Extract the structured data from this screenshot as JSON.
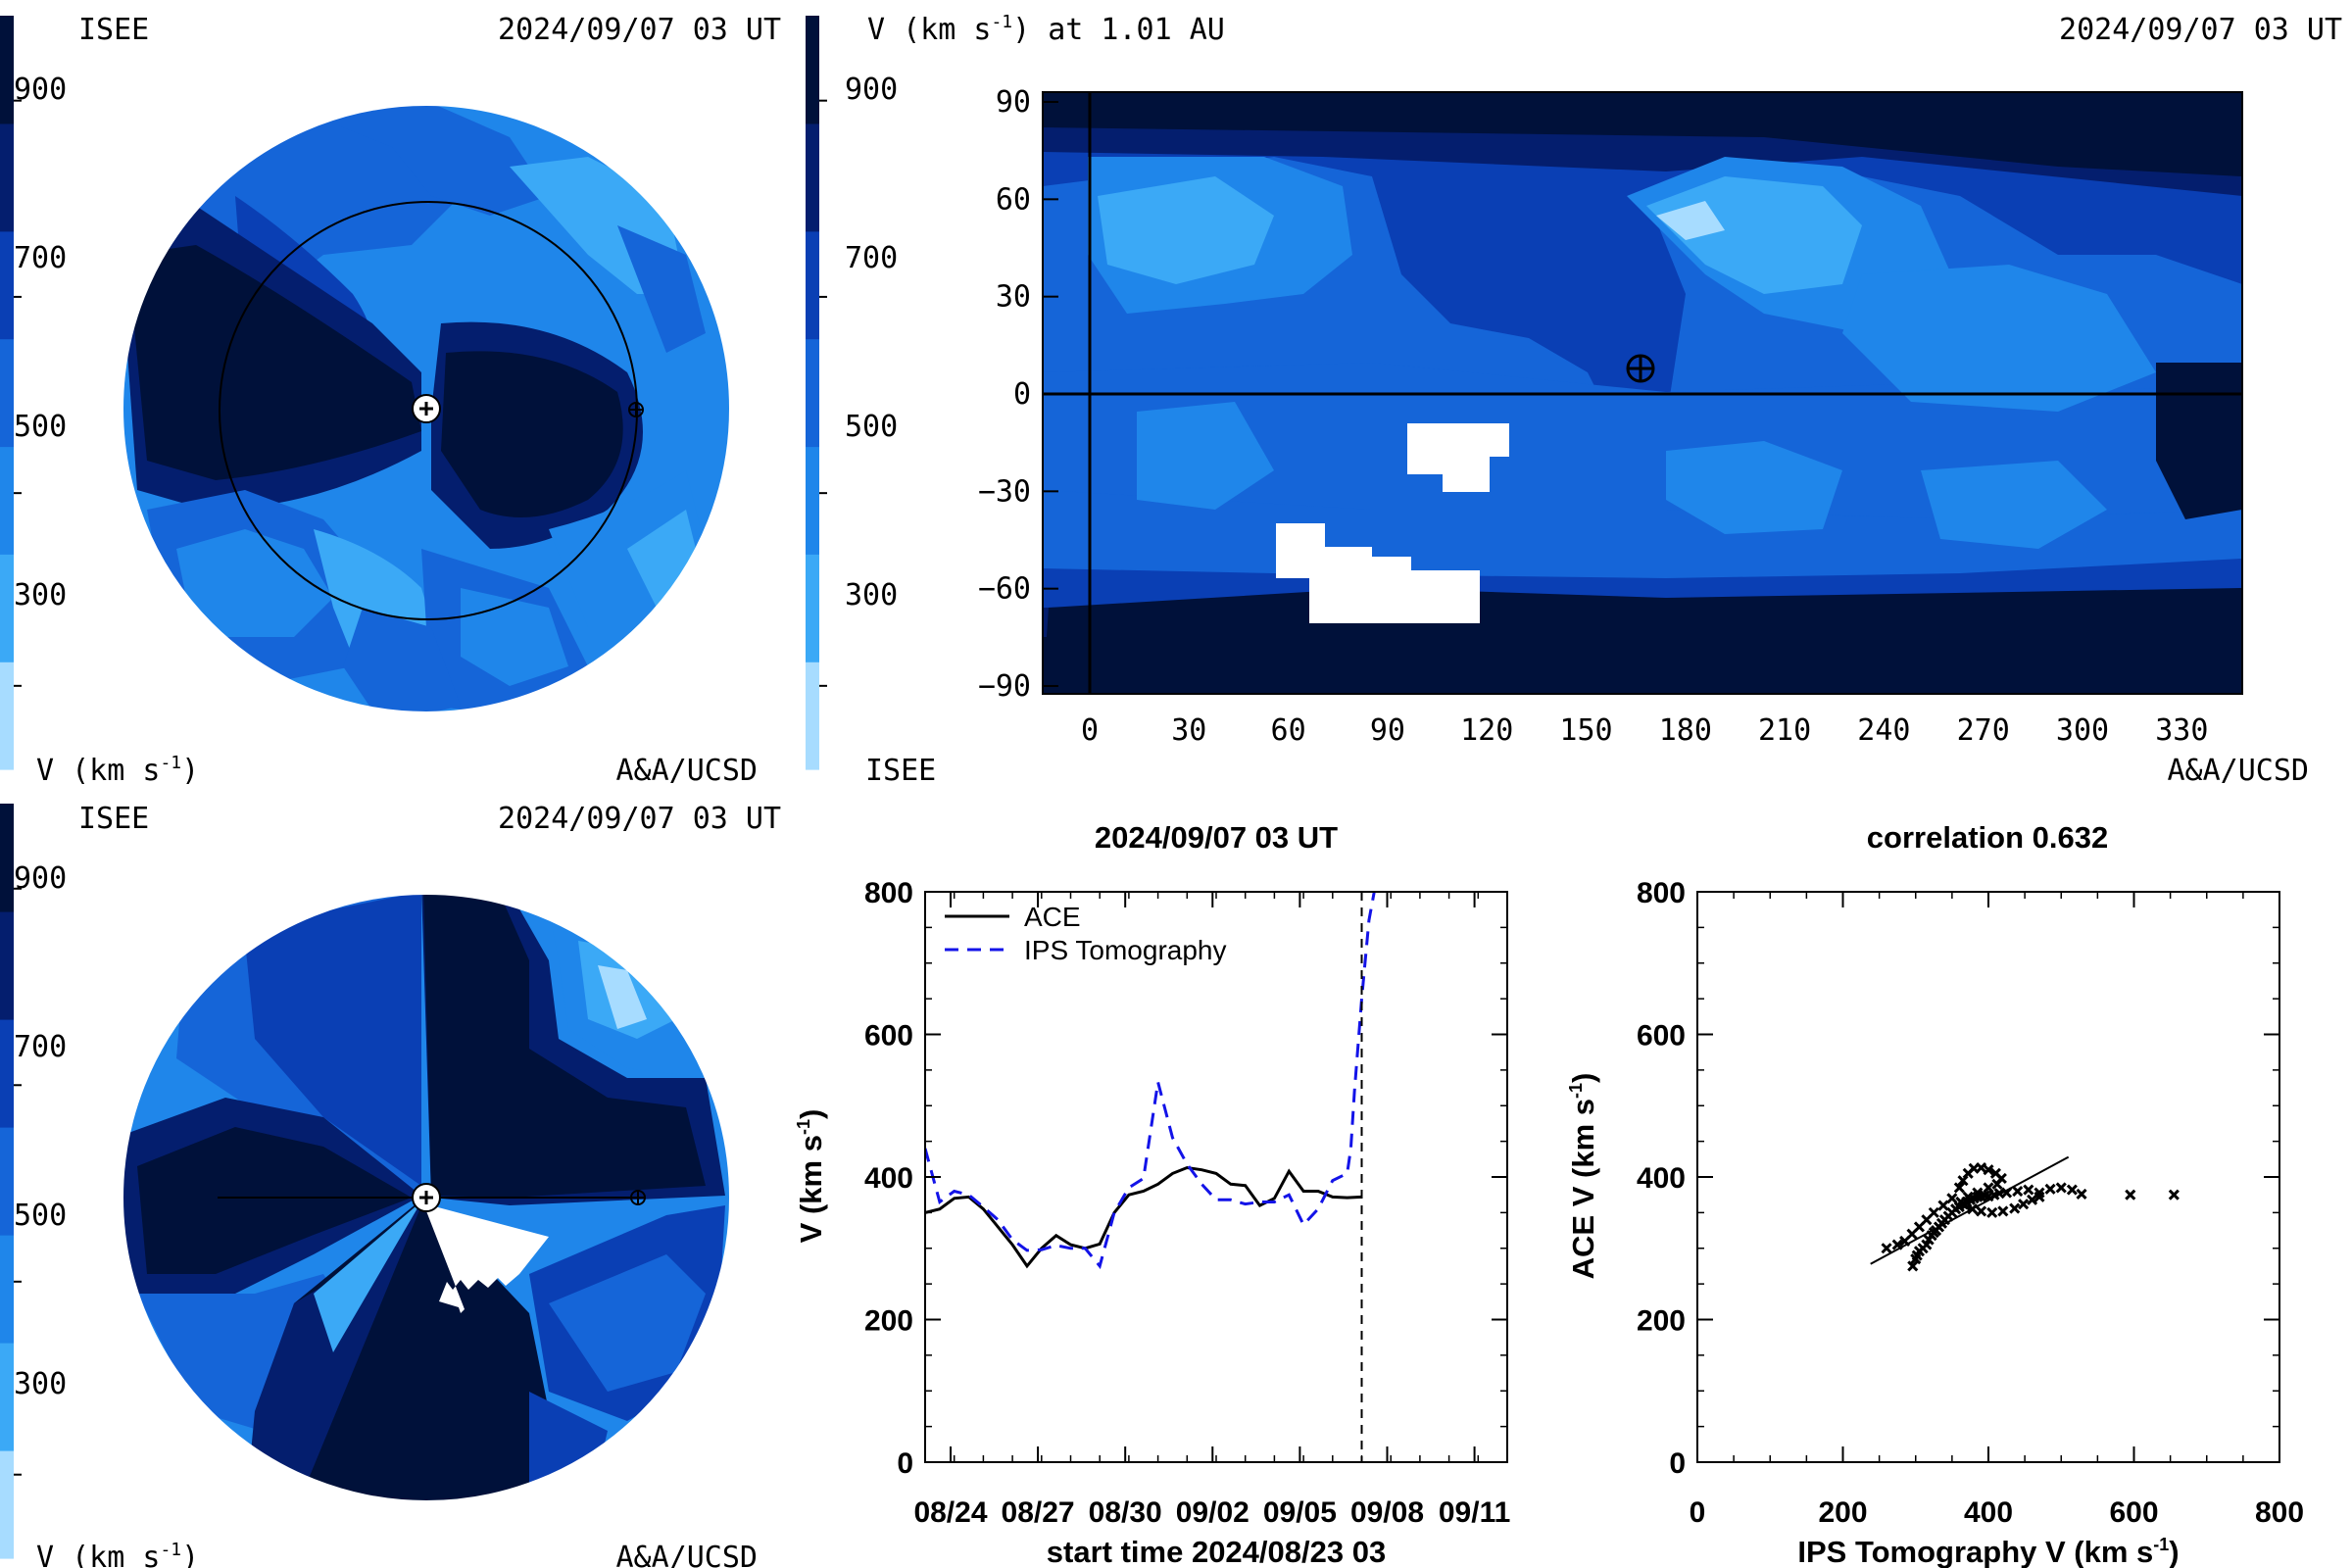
{
  "colors": {
    "velocity_levels": [
      "#a7dcff",
      "#3ba9f6",
      "#1f86ea",
      "#1565d8",
      "#0a3fb4",
      "#041e6e",
      "#00113a"
    ],
    "white": "#ffffff",
    "black": "#000000",
    "tomography_dash": "#1313e8"
  },
  "panels": {
    "top_left": {
      "org": "ISEE",
      "timestamp": "2024/09/07 03 UT",
      "colorbar_ticks": [
        "900",
        "700",
        "500",
        "300"
      ],
      "unit_label": "V (km s",
      "unit_sup": "-1",
      "unit_close": ")",
      "credit": "A&A/UCSD",
      "markers": [
        "sun-marker",
        "earth-marker"
      ],
      "orbit_ring": true
    },
    "top_right": {
      "title_prefix": "V (km s",
      "title_sup": "-1",
      "title_suffix": ") at 1.01 AU",
      "timestamp": "2024/09/07 03 UT",
      "colorbar_ticks": [
        "900",
        "700",
        "500",
        "300"
      ],
      "org": "ISEE",
      "credit": "A&A/UCSD",
      "lat_ticks": [
        "90",
        "60",
        "30",
        "0",
        "−30",
        "−60",
        "−90"
      ],
      "lon_ticks": [
        "0",
        "30",
        "60",
        "90",
        "120",
        "150",
        "180",
        "210",
        "240",
        "270",
        "300",
        "330"
      ]
    },
    "bottom_left": {
      "org": "ISEE",
      "timestamp": "2024/09/07 03 UT",
      "colorbar_ticks": [
        "900",
        "700",
        "500",
        "300"
      ],
      "unit_label": "V (km s",
      "unit_sup": "-1",
      "unit_close": ")",
      "credit": "A&A/UCSD"
    }
  },
  "chart_data": [
    {
      "type": "line",
      "title": "2024/09/07 03 UT",
      "xlabel": "start time 2024/08/23 03",
      "ylabel_main": "V (km s",
      "ylabel_sup": "-1",
      "ylabel_close": ")",
      "ylim": [
        0,
        800
      ],
      "xlim_days": [
        0,
        20
      ],
      "x_tick_labels": [
        "08/24",
        "08/27",
        "08/30",
        "09/02",
        "09/05",
        "09/08",
        "09/11"
      ],
      "y_tick_labels": [
        "0",
        "200",
        "400",
        "600",
        "800"
      ],
      "series": [
        {
          "name": "ACE",
          "style": "solid",
          "x": [
            "08/23 03",
            "08/23 15",
            "08/24 03",
            "08/24 15",
            "08/25 03",
            "08/25 15",
            "08/26 03",
            "08/26 15",
            "08/27 03",
            "08/27 15",
            "08/28 03",
            "08/28 15",
            "08/29 03",
            "08/29 15",
            "08/30 03",
            "08/30 15",
            "08/31 03",
            "08/31 15",
            "09/01 03",
            "09/01 15",
            "09/02 03",
            "09/02 15",
            "09/03 03",
            "09/03 15",
            "09/04 03",
            "09/04 15",
            "09/05 03",
            "09/05 15",
            "09/06 03",
            "09/06 15",
            "09/07 03"
          ],
          "values": [
            350,
            355,
            370,
            372,
            355,
            330,
            305,
            275,
            300,
            318,
            305,
            300,
            306,
            350,
            375,
            380,
            390,
            405,
            413,
            410,
            405,
            390,
            388,
            360,
            370,
            408,
            380,
            380,
            372,
            371,
            372
          ]
        },
        {
          "name": "IPS Tomography",
          "style": "dashed",
          "x": [
            "08/23 03",
            "08/23 15",
            "08/24 03",
            "08/24 15",
            "08/25 03",
            "08/25 15",
            "08/26 03",
            "08/26 15",
            "08/27 03",
            "08/27 15",
            "08/28 03",
            "08/28 15",
            "08/29 03",
            "08/29 15",
            "08/30 03",
            "08/30 15",
            "08/31 03",
            "08/31 15",
            "09/01 03",
            "09/01 15",
            "09/02 03",
            "09/02 15",
            "09/03 03",
            "09/03 15",
            "09/04 03",
            "09/04 15",
            "09/05 03",
            "09/05 15",
            "09/06 03",
            "09/06 15",
            "09/06 18",
            "09/06 21",
            "09/07 03",
            "09/07 09",
            "09/07 15"
          ],
          "values": [
            440,
            365,
            380,
            375,
            358,
            340,
            312,
            297,
            298,
            304,
            300,
            300,
            275,
            350,
            385,
            398,
            533,
            455,
            418,
            390,
            368,
            368,
            362,
            365,
            365,
            375,
            333,
            355,
            395,
            405,
            440,
            520,
            650,
            760,
            815
          ]
        }
      ],
      "vertical_marker": "09/07 03"
    },
    {
      "type": "scatter",
      "title": "correlation 0.632",
      "xlabel_main": "IPS Tomography V (km s",
      "xlabel_sup": "-1",
      "xlabel_close": ")",
      "ylabel_main": "ACE V (km s",
      "ylabel_sup": "-1",
      "ylabel_close": ")",
      "xlim": [
        0,
        800
      ],
      "ylim": [
        0,
        800
      ],
      "x_tick_labels": [
        "0",
        "200",
        "400",
        "600",
        "800"
      ],
      "y_tick_labels": [
        "0",
        "200",
        "400",
        "600",
        "800"
      ],
      "points": [
        [
          296,
          275
        ],
        [
          300,
          285
        ],
        [
          302,
          290
        ],
        [
          305,
          296
        ],
        [
          310,
          300
        ],
        [
          315,
          305
        ],
        [
          318,
          312
        ],
        [
          322,
          318
        ],
        [
          325,
          322
        ],
        [
          328,
          325
        ],
        [
          332,
          330
        ],
        [
          336,
          335
        ],
        [
          340,
          340
        ],
        [
          345,
          345
        ],
        [
          350,
          350
        ],
        [
          355,
          355
        ],
        [
          360,
          358
        ],
        [
          365,
          362
        ],
        [
          370,
          365
        ],
        [
          375,
          368
        ],
        [
          380,
          370
        ],
        [
          385,
          372
        ],
        [
          390,
          372
        ],
        [
          395,
          374
        ],
        [
          400,
          373
        ],
        [
          408,
          375
        ],
        [
          415,
          377
        ],
        [
          425,
          378
        ],
        [
          440,
          380
        ],
        [
          455,
          382
        ],
        [
          470,
          378
        ],
        [
          485,
          383
        ],
        [
          500,
          385
        ],
        [
          515,
          382
        ],
        [
          528,
          376
        ],
        [
          595,
          375
        ],
        [
          655,
          375
        ],
        [
          260,
          300
        ],
        [
          275,
          305
        ],
        [
          285,
          310
        ],
        [
          295,
          320
        ],
        [
          305,
          330
        ],
        [
          315,
          340
        ],
        [
          325,
          350
        ],
        [
          338,
          360
        ],
        [
          350,
          370
        ],
        [
          360,
          385
        ],
        [
          365,
          395
        ],
        [
          372,
          405
        ],
        [
          380,
          412
        ],
        [
          390,
          413
        ],
        [
          400,
          410
        ],
        [
          410,
          405
        ],
        [
          418,
          398
        ],
        [
          412,
          390
        ],
        [
          400,
          385
        ],
        [
          385,
          378
        ],
        [
          372,
          372
        ],
        [
          362,
          365
        ],
        [
          368,
          360
        ],
        [
          378,
          355
        ],
        [
          390,
          352
        ],
        [
          405,
          350
        ],
        [
          420,
          352
        ],
        [
          436,
          356
        ],
        [
          448,
          362
        ],
        [
          460,
          368
        ],
        [
          470,
          372
        ]
      ],
      "fit_line": [
        [
          238,
          278
        ],
        [
          510,
          428
        ]
      ]
    }
  ]
}
